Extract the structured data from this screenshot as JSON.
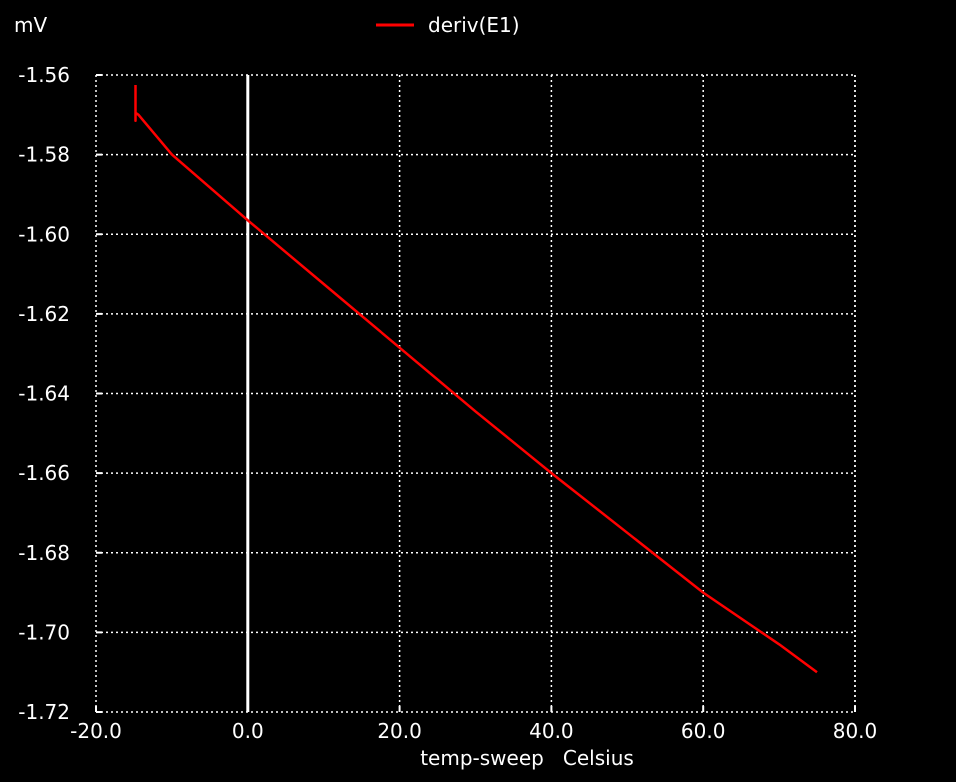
{
  "chart_data": {
    "type": "line",
    "title": "",
    "xlabel": "temp-sweep   Celsius",
    "ylabel": "mV",
    "xlim": [
      -20,
      80
    ],
    "ylim": [
      -1.72,
      -1.56
    ],
    "xticks": [
      "-20.0",
      "0.0",
      "20.0",
      "40.0",
      "60.0",
      "80.0"
    ],
    "yticks": [
      "-1.56",
      "-1.58",
      "-1.60",
      "-1.62",
      "-1.64",
      "-1.66",
      "-1.68",
      "-1.70",
      "-1.72"
    ],
    "grid": true,
    "legend_position": "top-center",
    "series": [
      {
        "name": "deriv(E1)",
        "color": "#ff0000",
        "x": [
          -14.8,
          -14.8,
          -14.8,
          -14.4,
          -10,
          0,
          10,
          20,
          30,
          40,
          50,
          60,
          70,
          75
        ],
        "y": [
          -1.5625,
          -1.5715,
          -1.5695,
          -1.57,
          -1.58,
          -1.5965,
          -1.6125,
          -1.6285,
          -1.6445,
          -1.66,
          -1.675,
          -1.69,
          -1.703,
          -1.71
        ]
      }
    ]
  }
}
